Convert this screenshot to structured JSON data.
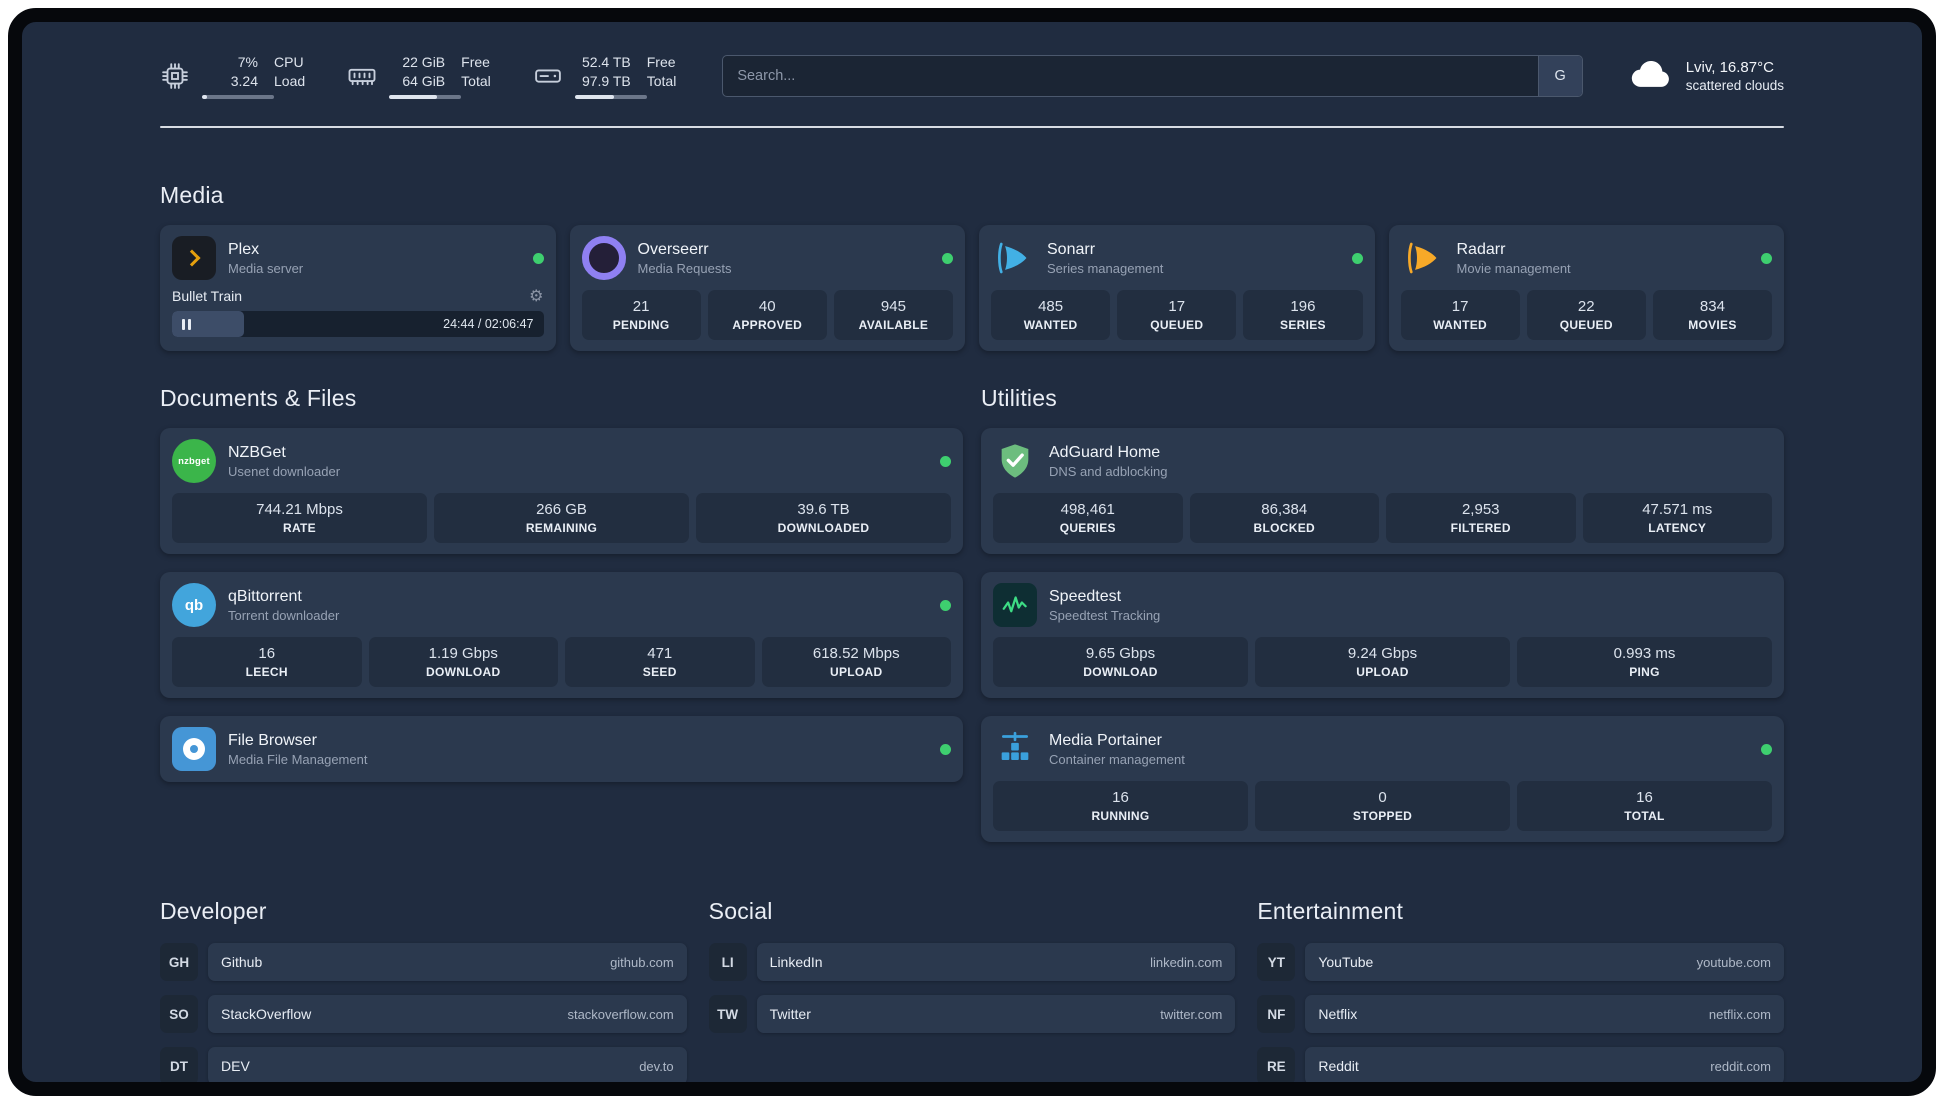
{
  "topbar": {
    "cpu": {
      "percent": "7%",
      "load": "3.24",
      "label_top": "CPU",
      "label_bottom": "Load",
      "progress": 7
    },
    "ram": {
      "free": "22 GiB",
      "total": "64 GiB",
      "label_top": "Free",
      "label_bottom": "Total",
      "progress": 66
    },
    "disk": {
      "free": "52.4 TB",
      "total": "97.9 TB",
      "label_top": "Free",
      "label_bottom": "Total",
      "progress": 54
    },
    "search": {
      "placeholder": "Search...",
      "engine_button": "G"
    },
    "weather": {
      "location": "Lviv, 16.87°C",
      "condition": "scattered clouds"
    }
  },
  "icons": {
    "gear": "⚙",
    "cpu": "cpu-chip-icon",
    "ram": "memory-icon",
    "disk": "hard-drive-icon",
    "weather": "cloud-icon"
  },
  "colors": {
    "background": "#202c40",
    "card": "#2b394e",
    "stat_block": "#222e40",
    "status_online": "#3ecf6f",
    "plex_accent": "#e5a00d"
  },
  "media": {
    "heading": "Media",
    "plex": {
      "name": "Plex",
      "subtitle": "Media server",
      "now_playing": "Bullet Train",
      "time": "24:44 / 02:06:47",
      "progress_percent": 19.5
    },
    "overseerr": {
      "name": "Overseerr",
      "subtitle": "Media Requests",
      "stats": [
        {
          "value": "21",
          "label": "PENDING"
        },
        {
          "value": "40",
          "label": "APPROVED"
        },
        {
          "value": "945",
          "label": "AVAILABLE"
        }
      ]
    },
    "sonarr": {
      "name": "Sonarr",
      "subtitle": "Series management",
      "stats": [
        {
          "value": "485",
          "label": "WANTED"
        },
        {
          "value": "17",
          "label": "QUEUED"
        },
        {
          "value": "196",
          "label": "SERIES"
        }
      ]
    },
    "radarr": {
      "name": "Radarr",
      "subtitle": "Movie management",
      "stats": [
        {
          "value": "17",
          "label": "WANTED"
        },
        {
          "value": "22",
          "label": "QUEUED"
        },
        {
          "value": "834",
          "label": "MOVIES"
        }
      ]
    }
  },
  "documents": {
    "heading": "Documents & Files",
    "nzbget": {
      "name": "NZBGet",
      "subtitle": "Usenet downloader",
      "icon_text": "nzbget",
      "stats": [
        {
          "value": "744.21 Mbps",
          "label": "RATE"
        },
        {
          "value": "266 GB",
          "label": "REMAINING"
        },
        {
          "value": "39.6 TB",
          "label": "DOWNLOADED"
        }
      ]
    },
    "qbittorrent": {
      "name": "qBittorrent",
      "subtitle": "Torrent downloader",
      "icon_text": "qb",
      "stats": [
        {
          "value": "16",
          "label": "LEECH"
        },
        {
          "value": "1.19 Gbps",
          "label": "DOWNLOAD"
        },
        {
          "value": "471",
          "label": "SEED"
        },
        {
          "value": "618.52 Mbps",
          "label": "UPLOAD"
        }
      ]
    },
    "filebrowser": {
      "name": "File Browser",
      "subtitle": "Media File Management"
    }
  },
  "utilities": {
    "heading": "Utilities",
    "adguard": {
      "name": "AdGuard Home",
      "subtitle": "DNS and adblocking",
      "stats": [
        {
          "value": "498,461",
          "label": "QUERIES"
        },
        {
          "value": "86,384",
          "label": "BLOCKED"
        },
        {
          "value": "2,953",
          "label": "FILTERED"
        },
        {
          "value": "47.571 ms",
          "label": "LATENCY"
        }
      ]
    },
    "speedtest": {
      "name": "Speedtest",
      "subtitle": "Speedtest Tracking",
      "stats": [
        {
          "value": "9.65 Gbps",
          "label": "DOWNLOAD"
        },
        {
          "value": "9.24 Gbps",
          "label": "UPLOAD"
        },
        {
          "value": "0.993 ms",
          "label": "PING"
        }
      ]
    },
    "portainer": {
      "name": "Media Portainer",
      "subtitle": "Container management",
      "stats": [
        {
          "value": "16",
          "label": "RUNNING"
        },
        {
          "value": "0",
          "label": "STOPPED"
        },
        {
          "value": "16",
          "label": "TOTAL"
        }
      ]
    }
  },
  "bookmarks": {
    "developer": {
      "heading": "Developer",
      "items": [
        {
          "abbr": "GH",
          "name": "Github",
          "domain": "github.com"
        },
        {
          "abbr": "SO",
          "name": "StackOverflow",
          "domain": "stackoverflow.com"
        },
        {
          "abbr": "DT",
          "name": "DEV",
          "domain": "dev.to"
        }
      ]
    },
    "social": {
      "heading": "Social",
      "items": [
        {
          "abbr": "LI",
          "name": "LinkedIn",
          "domain": "linkedin.com"
        },
        {
          "abbr": "TW",
          "name": "Twitter",
          "domain": "twitter.com"
        }
      ]
    },
    "entertainment": {
      "heading": "Entertainment",
      "items": [
        {
          "abbr": "YT",
          "name": "YouTube",
          "domain": "youtube.com"
        },
        {
          "abbr": "NF",
          "name": "Netflix",
          "domain": "netflix.com"
        },
        {
          "abbr": "RE",
          "name": "Reddit",
          "domain": "reddit.com"
        }
      ]
    }
  }
}
